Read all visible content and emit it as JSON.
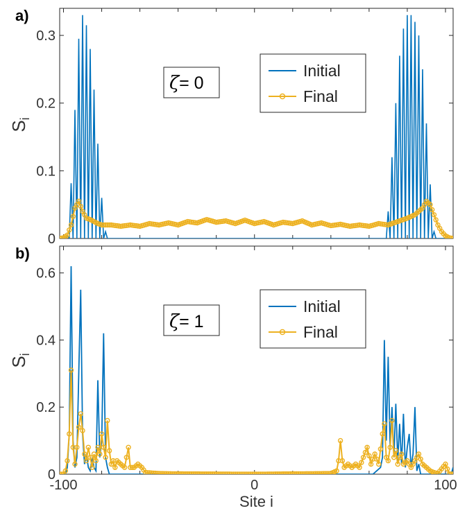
{
  "chart_data": [
    {
      "type": "line",
      "panel_label": "a)",
      "ylabel": "S",
      "ylabel_sub": "i",
      "xlabel": "",
      "xlim": [
        -102,
        104
      ],
      "ylim": [
        0,
        0.34
      ],
      "yticks": [
        0,
        0.1,
        0.2,
        0.3
      ],
      "ytick_labels": [
        "0",
        "0.1",
        "0.2",
        "0.3"
      ],
      "xticks": [
        -100,
        0,
        100
      ],
      "xtick_labels": [
        "",
        "",
        ""
      ],
      "annotation": {
        "symbol": "ζ",
        "text": "= 0"
      },
      "legend": {
        "placement": "top-right",
        "entries": [
          "Initial",
          "Final"
        ]
      },
      "series": [
        {
          "name": "Initial",
          "color": "#0072BD",
          "style": "oscillating-envelope",
          "points": [
            [
              -102,
              0
            ],
            [
              -98,
              0.005
            ],
            [
              -95,
              0.12
            ],
            [
              -93,
              0.26
            ],
            [
              -91,
              0.33
            ],
            [
              -89,
              0.33
            ],
            [
              -87,
              0.3
            ],
            [
              -85,
              0.26
            ],
            [
              -83,
              0.18
            ],
            [
              -81,
              0.1
            ],
            [
              -79,
              0.02
            ],
            [
              -77,
              0
            ],
            [
              68,
              0
            ],
            [
              70,
              0.04
            ],
            [
              72,
              0.12
            ],
            [
              74,
              0.2
            ],
            [
              76,
              0.27
            ],
            [
              78,
              0.31
            ],
            [
              80,
              0.33
            ],
            [
              82,
              0.33
            ],
            [
              84,
              0.32
            ],
            [
              86,
              0.3
            ],
            [
              88,
              0.25
            ],
            [
              90,
              0.17
            ],
            [
              92,
              0.08
            ],
            [
              94,
              0.01
            ],
            [
              96,
              0
            ],
            [
              104,
              0
            ]
          ]
        },
        {
          "name": "Final",
          "color": "#EDB120",
          "style": "markers",
          "points": [
            [
              -102,
              0
            ],
            [
              -100,
              0.001
            ],
            [
              -98,
              0.005
            ],
            [
              -96,
              0.02
            ],
            [
              -94,
              0.045
            ],
            [
              -92,
              0.055
            ],
            [
              -90,
              0.04
            ],
            [
              -88,
              0.03
            ],
            [
              -86,
              0.028
            ],
            [
              -84,
              0.025
            ],
            [
              -82,
              0.022
            ],
            [
              -80,
              0.02
            ],
            [
              -75,
              0.02
            ],
            [
              -70,
              0.018
            ],
            [
              -65,
              0.02
            ],
            [
              -60,
              0.018
            ],
            [
              -55,
              0.022
            ],
            [
              -50,
              0.02
            ],
            [
              -45,
              0.023
            ],
            [
              -40,
              0.02
            ],
            [
              -35,
              0.025
            ],
            [
              -30,
              0.023
            ],
            [
              -25,
              0.028
            ],
            [
              -20,
              0.024
            ],
            [
              -15,
              0.026
            ],
            [
              -10,
              0.022
            ],
            [
              -5,
              0.027
            ],
            [
              0,
              0.022
            ],
            [
              5,
              0.025
            ],
            [
              10,
              0.02
            ],
            [
              15,
              0.024
            ],
            [
              20,
              0.022
            ],
            [
              25,
              0.026
            ],
            [
              30,
              0.02
            ],
            [
              35,
              0.023
            ],
            [
              40,
              0.019
            ],
            [
              45,
              0.021
            ],
            [
              50,
              0.018
            ],
            [
              55,
              0.02
            ],
            [
              60,
              0.018
            ],
            [
              65,
              0.022
            ],
            [
              70,
              0.02
            ],
            [
              75,
              0.025
            ],
            [
              80,
              0.03
            ],
            [
              84,
              0.035
            ],
            [
              88,
              0.045
            ],
            [
              90,
              0.055
            ],
            [
              92,
              0.05
            ],
            [
              94,
              0.035
            ],
            [
              96,
              0.02
            ],
            [
              98,
              0.01
            ],
            [
              100,
              0.004
            ],
            [
              102,
              0.001
            ],
            [
              104,
              0
            ]
          ]
        }
      ]
    },
    {
      "type": "line",
      "panel_label": "b)",
      "ylabel": "S",
      "ylabel_sub": "i",
      "xlabel": "Site i",
      "xlim": [
        -102,
        104
      ],
      "ylim": [
        0,
        0.68
      ],
      "yticks": [
        0,
        0.2,
        0.4,
        0.6
      ],
      "ytick_labels": [
        "0",
        "0.2",
        "0.4",
        "0.6"
      ],
      "xticks": [
        -100,
        0,
        100
      ],
      "xtick_labels": [
        "-100",
        "0",
        "100"
      ],
      "annotation": {
        "symbol": "ζ",
        "text": "= 1"
      },
      "legend": {
        "placement": "top-right",
        "entries": [
          "Initial",
          "Final"
        ]
      },
      "series": [
        {
          "name": "Initial",
          "color": "#0072BD",
          "style": "line",
          "points": [
            [
              -102,
              0
            ],
            [
              -99,
              0
            ],
            [
              -98,
              0.02
            ],
            [
              -97,
              0.12
            ],
            [
              -96,
              0.62
            ],
            [
              -95,
              0.1
            ],
            [
              -94,
              0.02
            ],
            [
              -93,
              0.05
            ],
            [
              -92,
              0.3
            ],
            [
              -91,
              0.55
            ],
            [
              -90,
              0.12
            ],
            [
              -89,
              0.03
            ],
            [
              -88,
              0.06
            ],
            [
              -87,
              0.02
            ],
            [
              -86,
              0.01
            ],
            [
              -85,
              0.05
            ],
            [
              -84,
              0.02
            ],
            [
              -83,
              0.01
            ],
            [
              -82,
              0.28
            ],
            [
              -81,
              0.05
            ],
            [
              -80,
              0.1
            ],
            [
              -79,
              0.42
            ],
            [
              -78,
              0.05
            ],
            [
              -77,
              0.02
            ],
            [
              -76,
              0
            ],
            [
              62,
              0
            ],
            [
              64,
              0.01
            ],
            [
              66,
              0.02
            ],
            [
              67,
              0.05
            ],
            [
              68,
              0.4
            ],
            [
              69,
              0.1
            ],
            [
              70,
              0.35
            ],
            [
              71,
              0.08
            ],
            [
              72,
              0.2
            ],
            [
              73,
              0.05
            ],
            [
              74,
              0.21
            ],
            [
              75,
              0.04
            ],
            [
              76,
              0.15
            ],
            [
              77,
              0.03
            ],
            [
              78,
              0.18
            ],
            [
              79,
              0.02
            ],
            [
              80,
              0.08
            ],
            [
              81,
              0.12
            ],
            [
              82,
              0.02
            ],
            [
              83,
              0.06
            ],
            [
              84,
              0.2
            ],
            [
              85,
              0.01
            ],
            [
              86,
              0.03
            ],
            [
              87,
              0
            ],
            [
              103,
              0
            ],
            [
              104,
              0.02
            ]
          ]
        },
        {
          "name": "Final",
          "color": "#EDB120",
          "style": "markers",
          "points": [
            [
              -102,
              0
            ],
            [
              -100,
              0
            ],
            [
              -99,
              0.01
            ],
            [
              -98,
              0.04
            ],
            [
              -97,
              0.12
            ],
            [
              -96,
              0.31
            ],
            [
              -95,
              0.08
            ],
            [
              -94,
              0.03
            ],
            [
              -93,
              0.08
            ],
            [
              -92,
              0.14
            ],
            [
              -91,
              0.18
            ],
            [
              -90,
              0.13
            ],
            [
              -89,
              0.06
            ],
            [
              -88,
              0.04
            ],
            [
              -87,
              0.08
            ],
            [
              -86,
              0.05
            ],
            [
              -85,
              0.02
            ],
            [
              -84,
              0.06
            ],
            [
              -83,
              0.04
            ],
            [
              -82,
              0.08
            ],
            [
              -81,
              0.06
            ],
            [
              -80,
              0.12
            ],
            [
              -79,
              0.08
            ],
            [
              -78,
              0.05
            ],
            [
              -77,
              0.16
            ],
            [
              -76,
              0.07
            ],
            [
              -75,
              0.03
            ],
            [
              -74,
              0.04
            ],
            [
              -73,
              0.02
            ],
            [
              -72,
              0.04
            ],
            [
              -70,
              0.03
            ],
            [
              -68,
              0.02
            ],
            [
              -66,
              0.08
            ],
            [
              -65,
              0.02
            ],
            [
              -63,
              0.02
            ],
            [
              -61,
              0.03
            ],
            [
              -59,
              0.02
            ],
            [
              -57,
              0.005
            ],
            [
              -50,
              0.002
            ],
            [
              -40,
              0.001
            ],
            [
              0,
              0
            ],
            [
              40,
              0.002
            ],
            [
              43,
              0.01
            ],
            [
              44,
              0.04
            ],
            [
              45,
              0.1
            ],
            [
              46,
              0.04
            ],
            [
              47,
              0.02
            ],
            [
              49,
              0.03
            ],
            [
              51,
              0.02
            ],
            [
              53,
              0.03
            ],
            [
              55,
              0.02
            ],
            [
              57,
              0.05
            ],
            [
              59,
              0.08
            ],
            [
              61,
              0.03
            ],
            [
              63,
              0.06
            ],
            [
              65,
              0.03
            ],
            [
              67,
              0.12
            ],
            [
              68,
              0.15
            ],
            [
              69,
              0.05
            ],
            [
              70,
              0.04
            ],
            [
              71,
              0.08
            ],
            [
              72,
              0.16
            ],
            [
              73,
              0.05
            ],
            [
              74,
              0.07
            ],
            [
              75,
              0.03
            ],
            [
              76,
              0.05
            ],
            [
              77,
              0.06
            ],
            [
              78,
              0.03
            ],
            [
              80,
              0.04
            ],
            [
              82,
              0.02
            ],
            [
              84,
              0.04
            ],
            [
              86,
              0.06
            ],
            [
              88,
              0.03
            ],
            [
              90,
              0.02
            ],
            [
              92,
              0.01
            ],
            [
              94,
              0.005
            ],
            [
              96,
              0.002
            ],
            [
              100,
              0.03
            ],
            [
              102,
              0.001
            ],
            [
              104,
              0
            ]
          ]
        }
      ]
    }
  ]
}
